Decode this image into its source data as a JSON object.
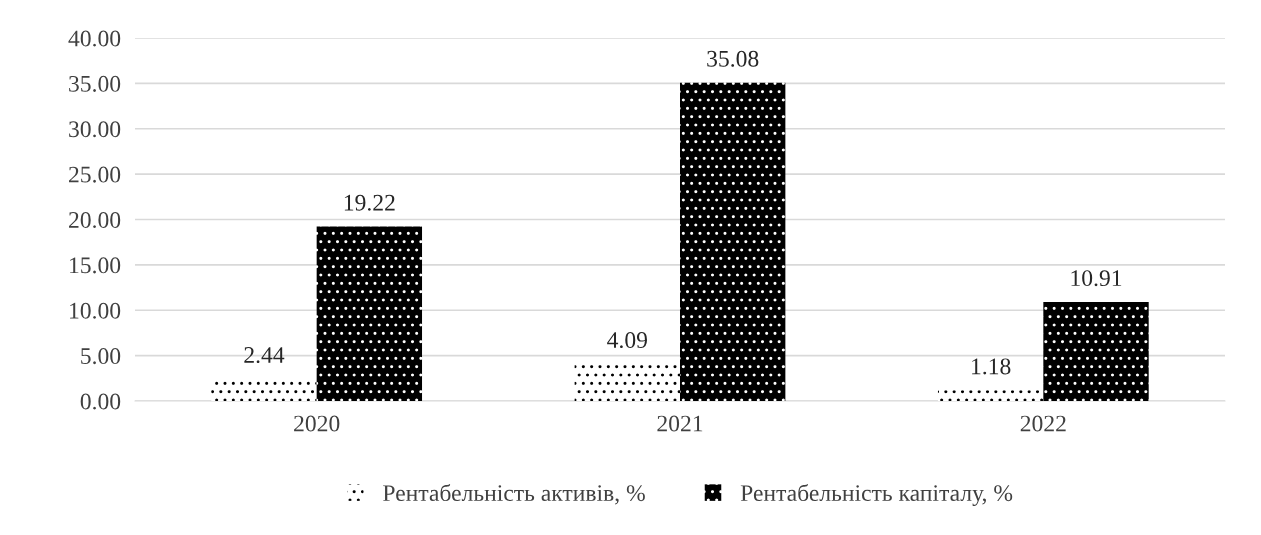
{
  "chart_data": {
    "type": "bar",
    "categories": [
      "2020",
      "2021",
      "2022"
    ],
    "series": [
      {
        "name": "Рентабельність активів, %",
        "color": "#ffffff",
        "values": [
          2.44,
          4.09,
          1.18
        ]
      },
      {
        "name": "Рентабельність капіталу, %",
        "color": "#000000",
        "values": [
          19.22,
          35.08,
          10.91
        ]
      }
    ],
    "ylim": [
      0,
      40
    ],
    "yticks": [
      {
        "value": 0,
        "label": "0.00"
      },
      {
        "value": 5,
        "label": "5.00"
      },
      {
        "value": 10,
        "label": "10.00"
      },
      {
        "value": 15,
        "label": "15.00"
      },
      {
        "value": 20,
        "label": "20.00"
      },
      {
        "value": 25,
        "label": "25.00"
      },
      {
        "value": 30,
        "label": "30.00"
      },
      {
        "value": 35,
        "label": "35.00"
      },
      {
        "value": 40,
        "label": "40.00"
      }
    ],
    "grid": "y",
    "legend": "bottom",
    "data_labels": true
  }
}
